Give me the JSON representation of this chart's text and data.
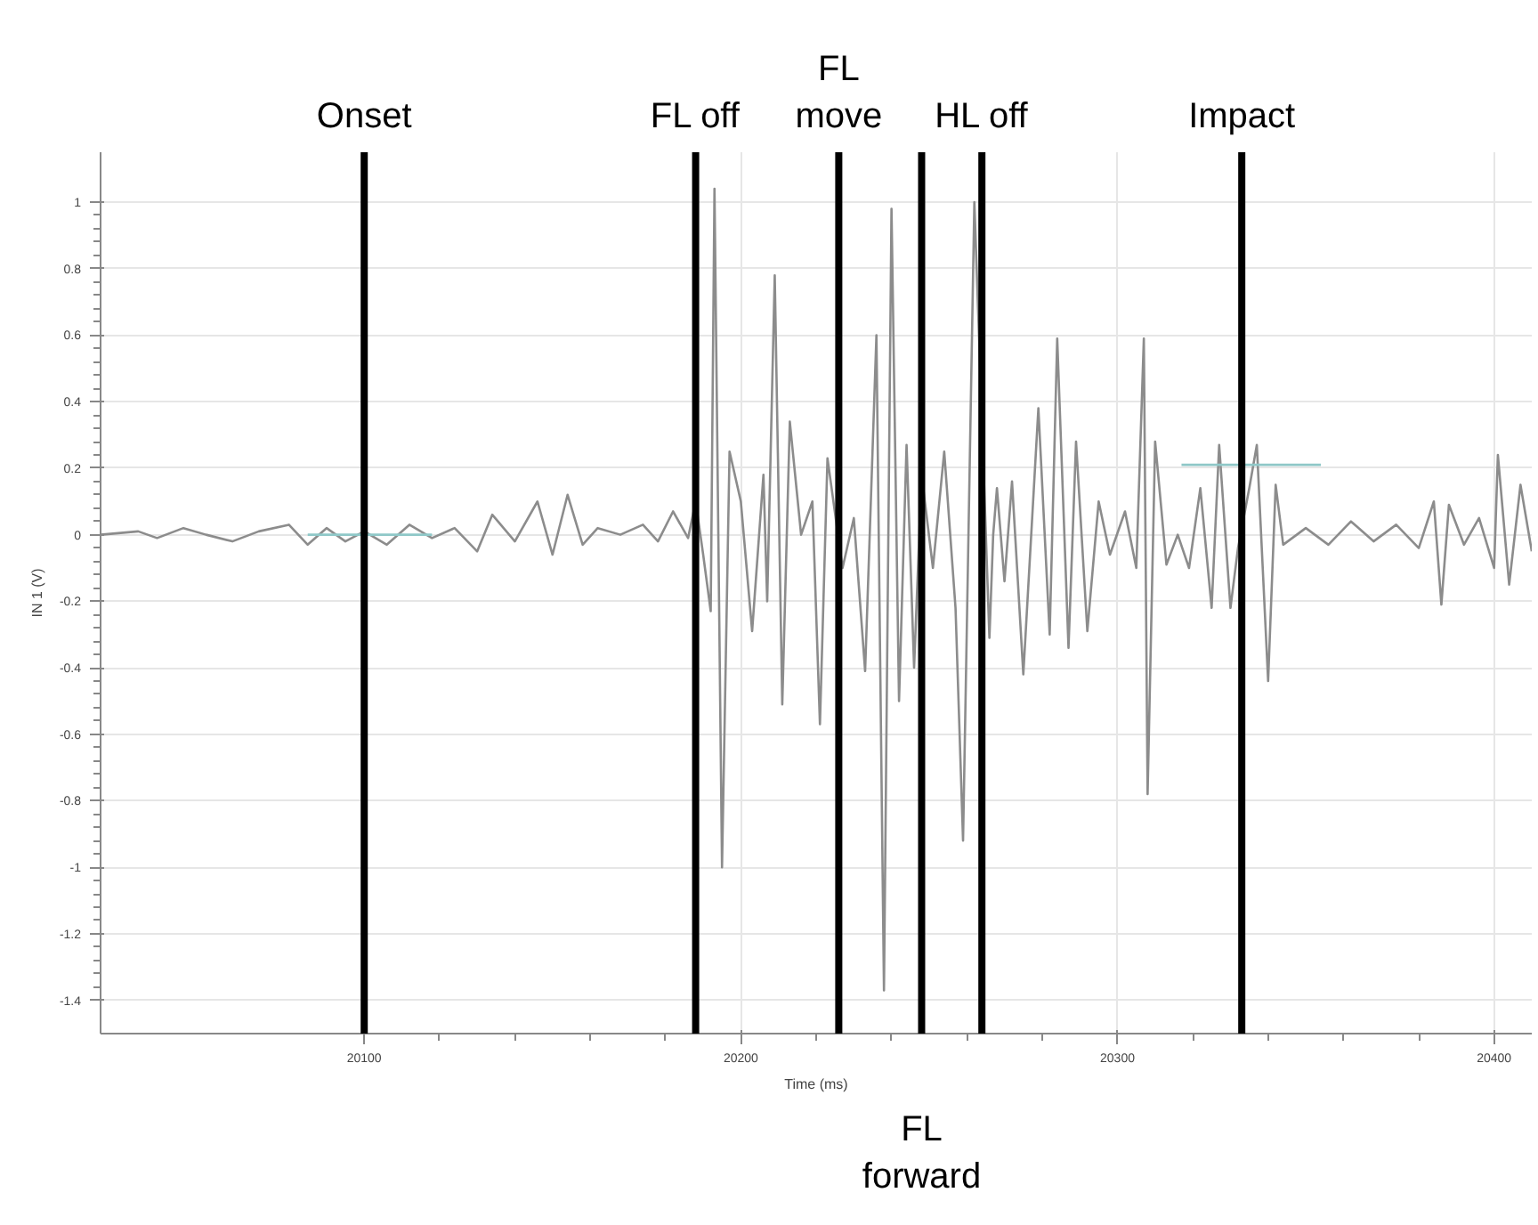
{
  "chart_data": {
    "type": "line",
    "xlabel": "Time (ms)",
    "ylabel": "IN 1 (V)",
    "xlim": [
      20030,
      20410
    ],
    "ylim": [
      -1.5,
      1.15
    ],
    "xticks": [
      20100,
      20200,
      20300,
      20400
    ],
    "yticks": [
      -1.4,
      -1.2,
      -1,
      -0.8,
      -0.6,
      -0.4,
      -0.2,
      0,
      0.2,
      0.4,
      0.6,
      0.8,
      1
    ],
    "grid": true,
    "marker": "none",
    "line_style": "solid",
    "series": [
      {
        "color": "#8c8c8c",
        "x": [
          20030,
          20040,
          20045,
          20052,
          20058,
          20065,
          20072,
          20080,
          20085,
          20090,
          20095,
          20100,
          20106,
          20112,
          20118,
          20124,
          20130,
          20134,
          20140,
          20146,
          20150,
          20154,
          20158,
          20162,
          20168,
          20174,
          20178,
          20182,
          20186,
          20188,
          20190,
          20192,
          20193,
          20195,
          20197,
          20200,
          20203,
          20206,
          20207,
          20209,
          20211,
          20213,
          20216,
          20219,
          20221,
          20223,
          20227,
          20230,
          20233,
          20236,
          20238,
          20240,
          20242,
          20244,
          20246,
          20248,
          20251,
          20254,
          20257,
          20259,
          20262,
          20266,
          20267,
          20268,
          20270,
          20272,
          20275,
          20279,
          20282,
          20284,
          20287,
          20289,
          20292,
          20295,
          20298,
          20302,
          20305,
          20307,
          20308,
          20310,
          20313,
          20316,
          20319,
          20322,
          20325,
          20327,
          20330,
          20332,
          20335,
          20337,
          20340,
          20342,
          20344,
          20350,
          20356,
          20362,
          20368,
          20374,
          20380,
          20384,
          20386,
          20388,
          20392,
          20396,
          20400,
          20401,
          20404,
          20407,
          20410
        ],
        "values": [
          0,
          0.01,
          -0.01,
          0.02,
          0,
          -0.02,
          0.01,
          0.03,
          -0.03,
          0.02,
          -0.02,
          0.01,
          -0.03,
          0.03,
          -0.01,
          0.02,
          -0.05,
          0.06,
          -0.02,
          0.1,
          -0.06,
          0.12,
          -0.03,
          0.02,
          0,
          0.03,
          -0.02,
          0.07,
          -0.01,
          0.1,
          -0.06,
          -0.23,
          1.04,
          -1,
          0.25,
          0.1,
          -0.29,
          0.18,
          -0.2,
          0.78,
          -0.51,
          0.34,
          0,
          0.1,
          -0.57,
          0.23,
          -0.1,
          0.05,
          -0.41,
          0.6,
          -1.37,
          0.98,
          -0.5,
          0.27,
          -0.4,
          0.18,
          -0.1,
          0.25,
          -0.22,
          -0.92,
          1,
          -0.31,
          0,
          0.14,
          -0.14,
          0.16,
          -0.42,
          0.38,
          -0.3,
          0.59,
          -0.34,
          0.28,
          -0.29,
          0.1,
          -0.06,
          0.07,
          -0.1,
          0.59,
          -0.78,
          0.28,
          -0.09,
          0,
          -0.1,
          0.14,
          -0.22,
          0.27,
          -0.22,
          -0.04,
          0.14,
          0.27,
          -0.44,
          0.15,
          -0.03,
          0.02,
          -0.03,
          0.04,
          -0.02,
          0.03,
          -0.04,
          0.1,
          -0.21,
          0.09,
          -0.03,
          0.05,
          -0.1,
          0.24,
          -0.15,
          0.15,
          -0.05
        ]
      },
      {
        "color": "#8fc8c8",
        "x": [
          20085,
          20118
        ],
        "values": [
          0,
          0
        ]
      },
      {
        "color": "#8fc8c8",
        "x": [
          20317,
          20354
        ],
        "values": [
          0.21,
          0.21
        ]
      }
    ],
    "ref_lines": [
      {
        "axis": "x",
        "value": 20100,
        "label": "Onset",
        "color": "#000000"
      },
      {
        "axis": "x",
        "value": 20188,
        "label": "FL off",
        "color": "#000000"
      },
      {
        "axis": "x",
        "value": 20226,
        "label": "FL\nmove",
        "color": "#000000"
      },
      {
        "axis": "x",
        "value": 20248,
        "label": "FL\nforward",
        "color": "#000000"
      },
      {
        "axis": "x",
        "value": 20264,
        "label": "HL off",
        "color": "#000000"
      },
      {
        "axis": "x",
        "value": 20333,
        "label": "Impact",
        "color": "#000000"
      }
    ]
  }
}
